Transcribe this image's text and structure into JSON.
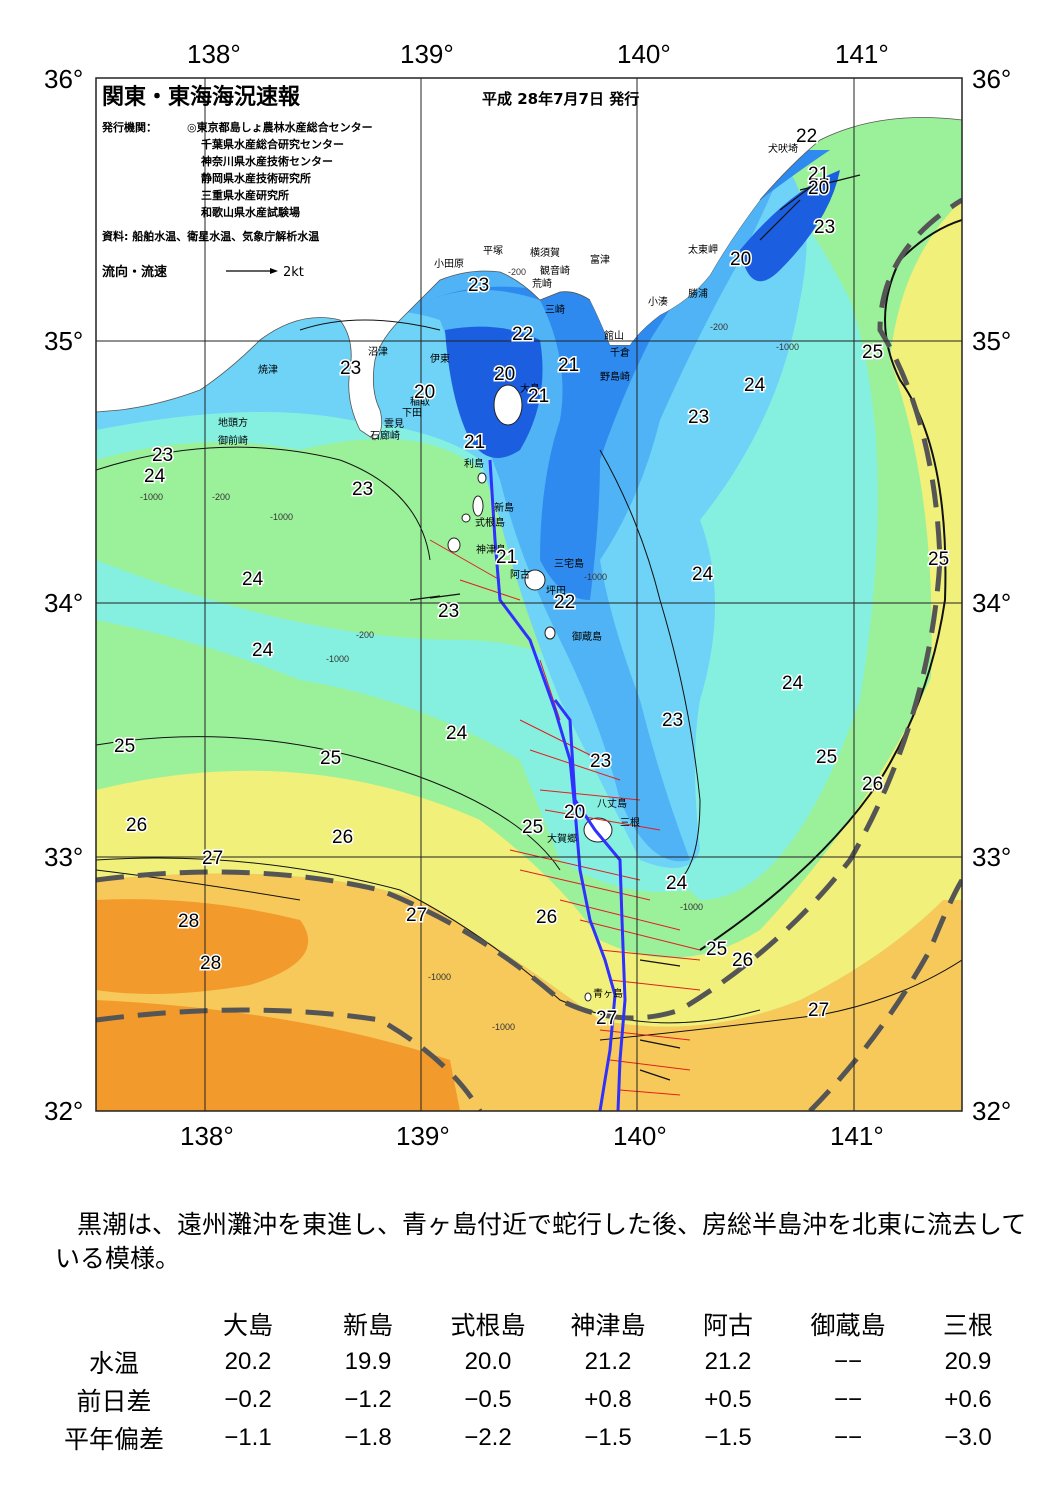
{
  "header": {
    "title": "関東・東海海況速報",
    "date": "平成 28年7月7日 発行",
    "issuer_label": "発行機関：",
    "issuers": [
      "◎東京都島しょ農林水産総合センター",
      "千葉県水産総合研究センター",
      "神奈川県水産技術センター",
      "静岡県水産技術研究所",
      "三重県水産研究所",
      "和歌山県水産試験場"
    ],
    "source": "資料: 船舶水温、衛星水温、気象庁解析水温",
    "legend_label": "流向・流速",
    "legend_unit": "2kt"
  },
  "axes": {
    "lon_ticks": [
      "138°",
      "139°",
      "140°",
      "141°"
    ],
    "lat_ticks": [
      "36°",
      "35°",
      "34°",
      "33°",
      "32°"
    ]
  },
  "places": [
    {
      "name": "犬吠埼"
    },
    {
      "name": "太東岬"
    },
    {
      "name": "勝浦"
    },
    {
      "name": "小湊"
    },
    {
      "name": "富津"
    },
    {
      "name": "館山"
    },
    {
      "name": "千倉"
    },
    {
      "name": "野島崎"
    },
    {
      "name": "横須賀"
    },
    {
      "name": "観音崎"
    },
    {
      "name": "荒崎"
    },
    {
      "name": "三崎"
    },
    {
      "name": "平塚"
    },
    {
      "name": "小田原"
    },
    {
      "name": "沼津"
    },
    {
      "name": "伊東"
    },
    {
      "name": "焼津"
    },
    {
      "name": "稲取"
    },
    {
      "name": "下田"
    },
    {
      "name": "雲見"
    },
    {
      "name": "石廊崎"
    },
    {
      "name": "地頭方"
    },
    {
      "name": "御前崎"
    },
    {
      "name": "大島"
    },
    {
      "name": "利島"
    },
    {
      "name": "新島"
    },
    {
      "name": "式根島"
    },
    {
      "name": "神津島"
    },
    {
      "name": "三宅島"
    },
    {
      "name": "阿古"
    },
    {
      "name": "坪田"
    },
    {
      "name": "御蔵島"
    },
    {
      "name": "八丈島"
    },
    {
      "name": "三根"
    },
    {
      "name": "大賀郷"
    },
    {
      "name": "青ヶ島"
    }
  ],
  "isotherm_labels": [
    "20",
    "21",
    "22",
    "23",
    "24",
    "25",
    "26",
    "27",
    "28"
  ],
  "depth_labels": [
    "-200",
    "-1000"
  ],
  "summary": "黒潮は、遠州灘沖を東進し、青ヶ島付近で蛇行した後、房総半島沖を北東に流去している模様。",
  "table": {
    "stations": [
      "大島",
      "新島",
      "式根島",
      "神津島",
      "阿古",
      "御蔵島",
      "三根"
    ],
    "rows": [
      {
        "label": "水温",
        "values": [
          "20.2",
          "19.9",
          "20.0",
          "21.2",
          "21.2",
          "−−",
          "20.9"
        ]
      },
      {
        "label": "前日差",
        "values": [
          "−0.2",
          "−1.2",
          "−0.5",
          "+0.8",
          "+0.5",
          "−−",
          "+0.6"
        ]
      },
      {
        "label": "平年偏差",
        "values": [
          "−1.1",
          "−1.8",
          "−2.2",
          "−1.5",
          "−1.5",
          "−−",
          "−3.0"
        ]
      }
    ]
  },
  "colors": {
    "t20": "#1b5fe0",
    "t21": "#2f8af0",
    "t22": "#4fb3f5",
    "t23": "#6ed3f6",
    "t24": "#86f0e0",
    "t25": "#9bf09a",
    "t26": "#f0f07a",
    "t27": "#f7c95a",
    "t28": "#f39a2c",
    "land": "#ffffff",
    "kuroshio_axis": "#3030ff"
  }
}
